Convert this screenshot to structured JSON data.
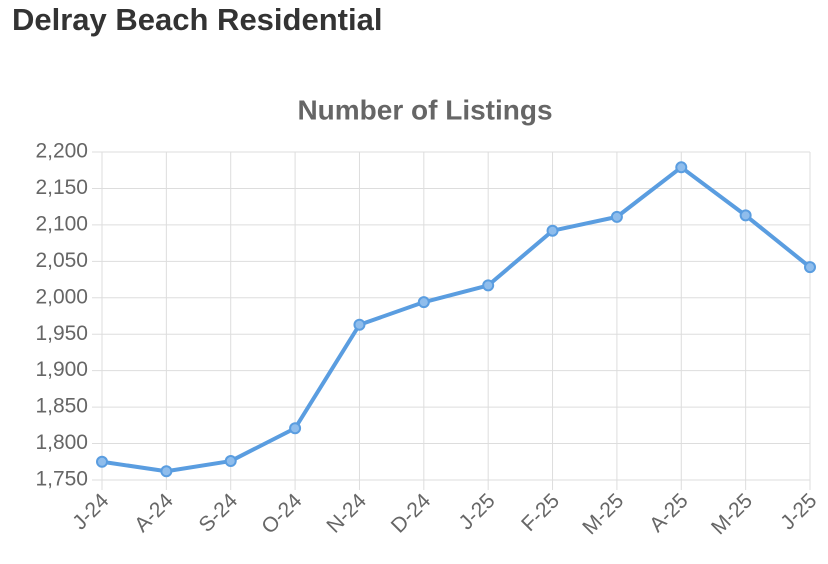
{
  "header": {
    "title": "Delray Beach Residential"
  },
  "chart_data": {
    "type": "line",
    "title": "Number of Listings",
    "categories": [
      "J-24",
      "A-24",
      "S-24",
      "O-24",
      "N-24",
      "D-24",
      "J-25",
      "F-25",
      "M-25",
      "A-25",
      "M-25",
      "J-25"
    ],
    "values": [
      1775,
      1762,
      1776,
      1821,
      1963,
      1994,
      2017,
      2092,
      2111,
      2179,
      2113,
      2042
    ],
    "color": "#5a9de0",
    "ylim": [
      1750,
      2200
    ],
    "yticks": [
      {
        "value": 1750,
        "label": "1,750"
      },
      {
        "value": 1800,
        "label": "1,800"
      },
      {
        "value": 1850,
        "label": "1,850"
      },
      {
        "value": 1900,
        "label": "1,900"
      },
      {
        "value": 1950,
        "label": "1,950"
      },
      {
        "value": 2000,
        "label": "2,000"
      },
      {
        "value": 2050,
        "label": "2,050"
      },
      {
        "value": 2100,
        "label": "2,100"
      },
      {
        "value": 2150,
        "label": "2,150"
      },
      {
        "value": 2200,
        "label": "2,200"
      }
    ],
    "grid": true
  }
}
